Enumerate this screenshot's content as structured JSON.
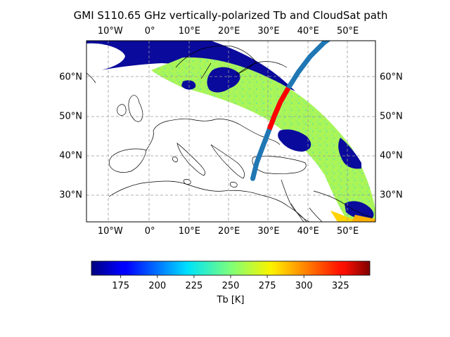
{
  "title": "GMI S110.65 GHz vertically-polarized Tb and  CloudSat path",
  "map": {
    "lon_range": [
      -16,
      57
    ],
    "lat_range": [
      23,
      69
    ],
    "gridlines": true,
    "lon_ticks": [
      {
        "value": -10,
        "label": "10°W"
      },
      {
        "value": 0,
        "label": "0°"
      },
      {
        "value": 10,
        "label": "10°E"
      },
      {
        "value": 20,
        "label": "20°E"
      },
      {
        "value": 30,
        "label": "30°E"
      },
      {
        "value": 40,
        "label": "40°E"
      },
      {
        "value": 50,
        "label": "50°E"
      }
    ],
    "lat_ticks": [
      {
        "value": 30,
        "label": "30°N"
      },
      {
        "value": 40,
        "label": "40°N"
      },
      {
        "value": 50,
        "label": "50°N"
      },
      {
        "value": 60,
        "label": "60°N"
      }
    ]
  },
  "cloudsat_path": {
    "color": "#1f77b4",
    "highlight_color": "#ff0000",
    "points": [
      [
        26,
        34
      ],
      [
        27,
        38
      ],
      [
        28.5,
        42
      ],
      [
        30,
        46
      ],
      [
        31.5,
        50
      ],
      [
        33,
        53.5
      ],
      [
        35,
        57
      ],
      [
        37.5,
        61
      ],
      [
        40.5,
        65
      ],
      [
        44,
        68.5
      ],
      [
        46,
        70
      ]
    ],
    "highlight_lat_range": [
      46.5,
      57
    ]
  },
  "colorbar": {
    "label": "Tb [K]",
    "vmin": 155,
    "vmax": 345,
    "colormap": "jet",
    "ticks": [
      {
        "value": 175,
        "label": "175"
      },
      {
        "value": 200,
        "label": "200"
      },
      {
        "value": 225,
        "label": "225"
      },
      {
        "value": 250,
        "label": "250"
      },
      {
        "value": 275,
        "label": "275"
      },
      {
        "value": 300,
        "label": "300"
      },
      {
        "value": 325,
        "label": "325"
      }
    ]
  }
}
